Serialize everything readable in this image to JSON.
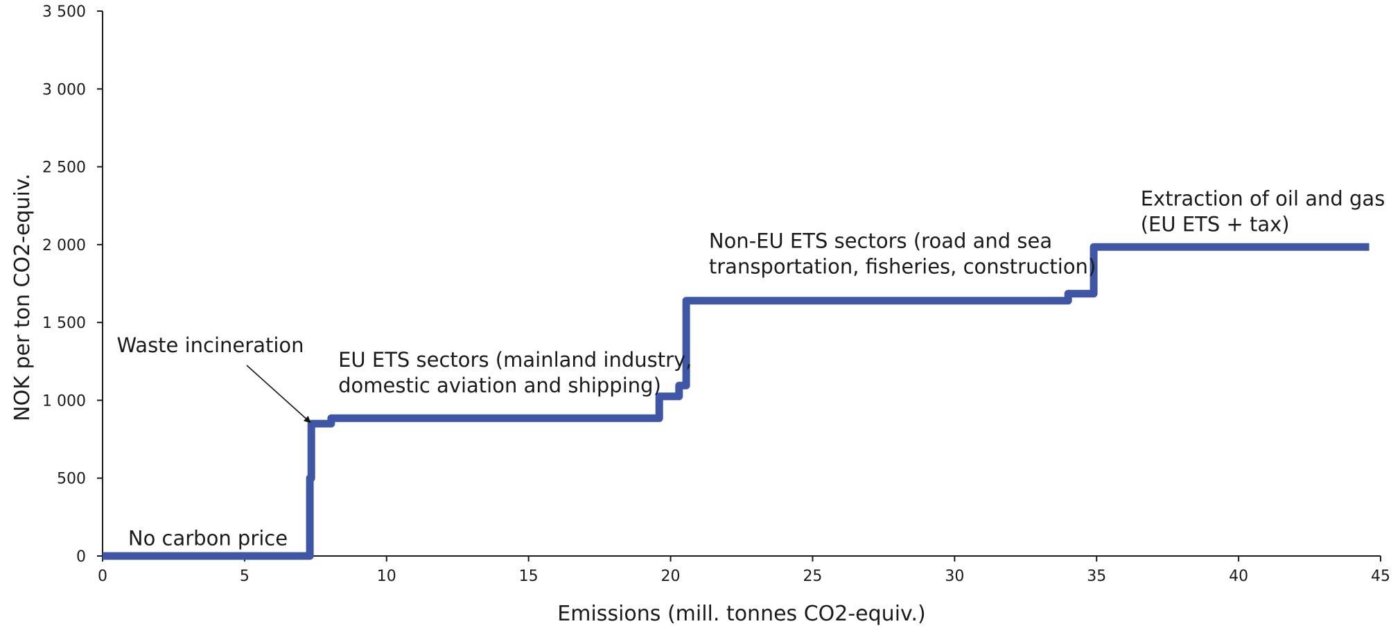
{
  "chart_data": {
    "type": "line",
    "step": true,
    "xlabel": "Emissions (mill. tonnes CO2-equiv.)",
    "ylabel": "NOK per ton CO2-equiv.",
    "xlim": [
      0,
      45
    ],
    "ylim": [
      0,
      3500
    ],
    "x_ticks": [
      0,
      5,
      10,
      15,
      20,
      25,
      30,
      35,
      40,
      45
    ],
    "x_tick_labels": [
      "0",
      "5",
      "10",
      "15",
      "20",
      "25",
      "30",
      "35",
      "40",
      "45"
    ],
    "y_ticks": [
      0,
      500,
      1000,
      1500,
      2000,
      2500,
      3000,
      3500
    ],
    "y_tick_labels": [
      "0",
      "500",
      "1 000",
      "1 500",
      "2 000",
      "2 500",
      "3 000",
      "3 500"
    ],
    "grid": false,
    "series": [
      {
        "color": "#3f56a6",
        "points": [
          [
            0,
            0
          ],
          [
            7.3,
            0
          ],
          [
            7.3,
            500
          ],
          [
            7.35,
            500
          ],
          [
            7.35,
            850
          ],
          [
            8.05,
            850
          ],
          [
            8.05,
            885
          ],
          [
            19.6,
            885
          ],
          [
            19.6,
            1025
          ],
          [
            20.3,
            1025
          ],
          [
            20.3,
            1095
          ],
          [
            20.55,
            1095
          ],
          [
            20.55,
            1640
          ],
          [
            34.0,
            1640
          ],
          [
            34.0,
            1685
          ],
          [
            34.9,
            1685
          ],
          [
            34.9,
            1985
          ],
          [
            44.6,
            1985
          ]
        ]
      }
    ],
    "annotations": [
      {
        "lines": [
          "No carbon price"
        ],
        "x": 0.9,
        "y": 70
      },
      {
        "lines": [
          "Waste incineration"
        ],
        "x": 0.5,
        "y": 1310,
        "arrow_to": [
          7.3,
          860
        ]
      },
      {
        "lines": [
          "EU ETS sectors (mainland industry,",
          "domestic aviation and shipping)"
        ],
        "x": 8.3,
        "y": 1215
      },
      {
        "lines": [
          "Non-EU ETS sectors (road and sea",
          "transportation, fisheries, construction)"
        ],
        "x": 21.35,
        "y": 1980
      },
      {
        "lines": [
          "Extraction of oil and gas",
          "(EU ETS + tax)"
        ],
        "x": 36.55,
        "y": 2250
      }
    ]
  }
}
